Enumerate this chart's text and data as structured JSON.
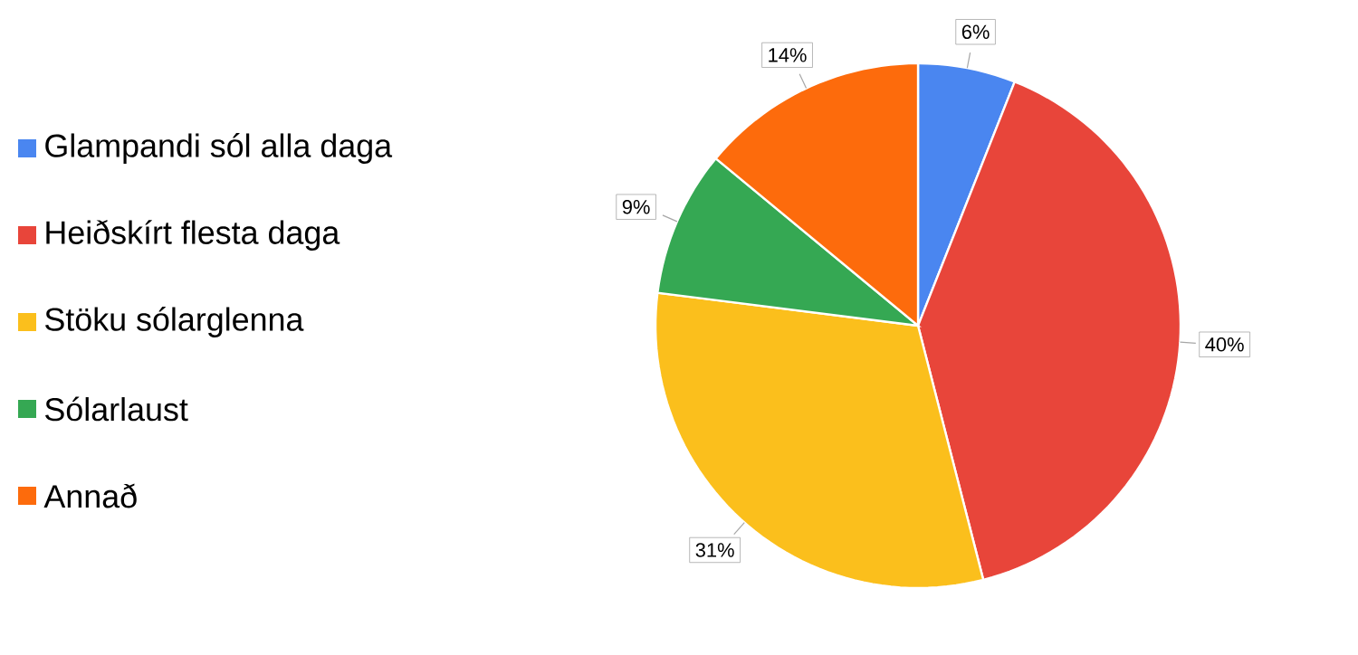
{
  "chart_data": {
    "type": "pie",
    "categories": [
      "Glampandi sól alla daga",
      "Heiðskírt flesta daga",
      "Stöku sólarglenna",
      "Sólarlaust",
      "Annað"
    ],
    "values": [
      6,
      40,
      31,
      9,
      14
    ],
    "colors": [
      "#4a86f0",
      "#e8453a",
      "#fbbf1c",
      "#35a853",
      "#fd6b0c"
    ],
    "value_labels": [
      "6%",
      "40%",
      "31%",
      "9%",
      "14%"
    ],
    "legend": "left"
  }
}
